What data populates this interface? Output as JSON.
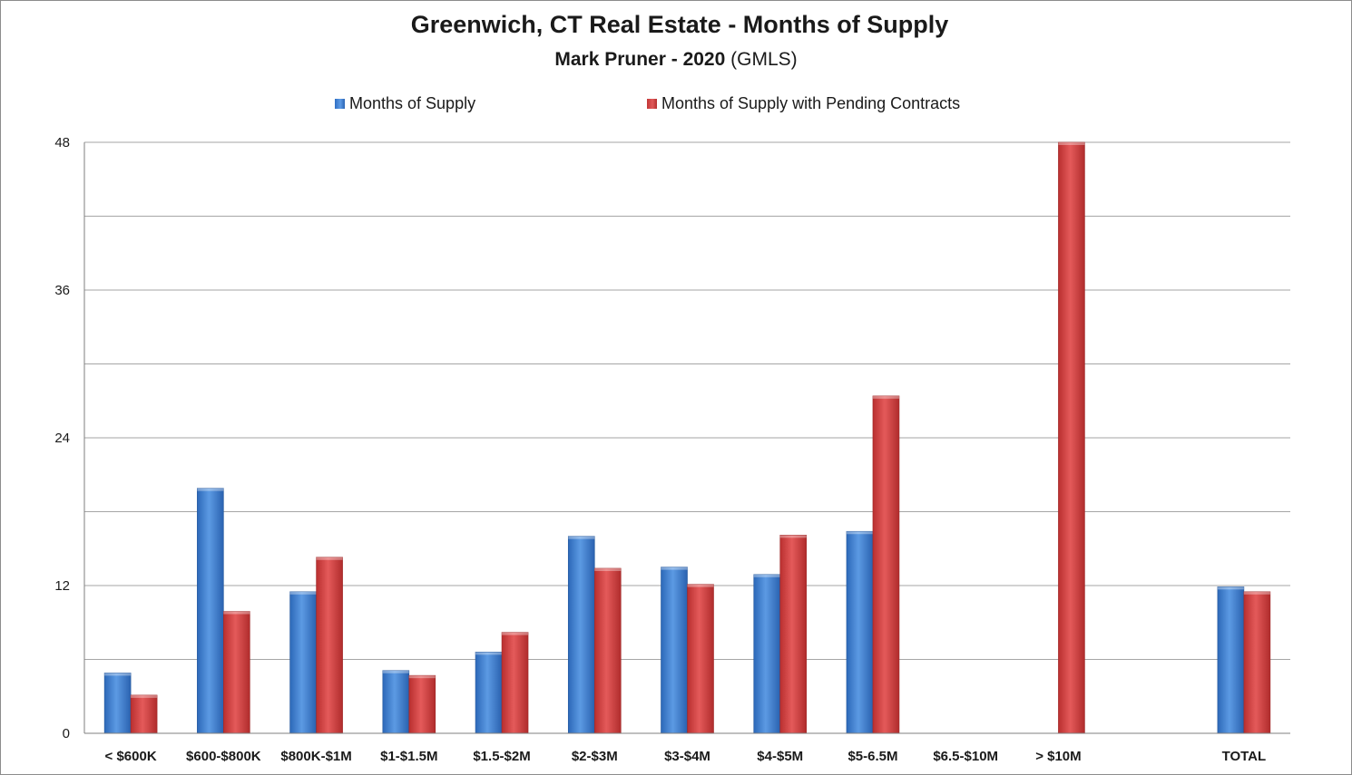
{
  "chart_data": {
    "type": "bar",
    "title": "Greenwich, CT Real Estate - Months of Supply",
    "subtitle": {
      "author": "Mark Pruner -  2020",
      "source": "(GMLS)"
    },
    "xlabel": "",
    "ylabel": "",
    "ylim": [
      0,
      48
    ],
    "yticks": [
      0,
      12,
      24,
      36,
      48
    ],
    "grid": true,
    "legend_position": "top",
    "categories": [
      "< $600K",
      "$600-$800K",
      "$800K-$1M",
      "$1-$1.5M",
      "$1.5-$2M",
      "$2-$3M",
      "$3-$4M",
      "$4-$5M",
      "$5-6.5M",
      "$6.5-$10M",
      "> $10M",
      "",
      "TOTAL"
    ],
    "series": [
      {
        "name": "Months of Supply",
        "color": "#3b7dd0",
        "values": [
          4.9,
          19.9,
          11.5,
          5.1,
          6.6,
          16.0,
          13.5,
          12.9,
          16.4,
          0,
          0,
          null,
          11.9
        ]
      },
      {
        "name": "Months of Supply with Pending Contracts",
        "color": "#d63e3e",
        "values": [
          3.1,
          9.9,
          14.3,
          4.7,
          8.2,
          13.4,
          12.1,
          16.1,
          27.4,
          0,
          48,
          null,
          11.5
        ]
      }
    ]
  }
}
